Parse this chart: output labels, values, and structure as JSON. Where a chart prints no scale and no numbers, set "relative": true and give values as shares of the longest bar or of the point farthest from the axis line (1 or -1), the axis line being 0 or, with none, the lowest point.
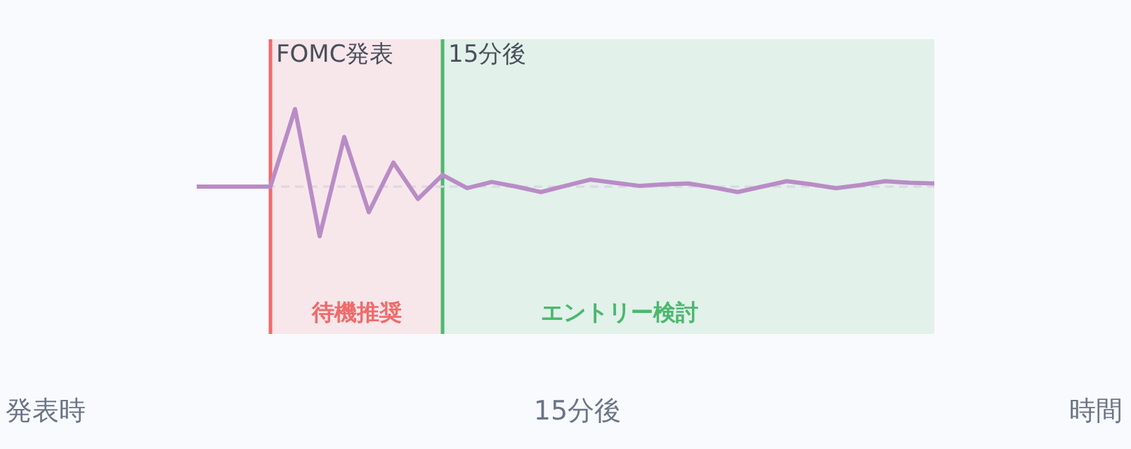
{
  "chart_data": {
    "type": "line",
    "relative": true,
    "tick_labels": false,
    "grid": false,
    "legend": false,
    "marker": "none",
    "line_style": "solid",
    "categories": [
      null,
      null,
      null,
      null,
      null,
      null,
      null,
      null,
      null,
      null,
      null,
      null,
      null,
      null,
      null,
      null,
      null,
      null,
      null,
      null,
      null,
      null,
      null,
      null,
      null,
      null,
      null,
      null,
      null,
      null,
      null
    ],
    "series": [
      {
        "color": "#b98cc6",
        "values": [
          0,
          0,
          0,
          0,
          1,
          -0.64,
          0.64,
          -0.33,
          0.31,
          -0.16,
          0.15,
          -0.02,
          0.06,
          0,
          -0.07,
          0.01,
          0.09,
          0.05,
          0.01,
          0.03,
          0.04,
          -0.01,
          -0.07,
          0,
          0.07,
          0.03,
          -0.02,
          0.02,
          0.07,
          0.05,
          0.04
        ]
      }
    ],
    "ref_lines": [
      {
        "axis": "y",
        "value": 0,
        "color": "#dcd6e4",
        "line_style": "dashed"
      }
    ],
    "annotations": [
      "FOMC発表",
      "15分後",
      "待機推奨",
      "エントリー検討",
      "発表時",
      "15分後",
      "時間"
    ]
  }
}
